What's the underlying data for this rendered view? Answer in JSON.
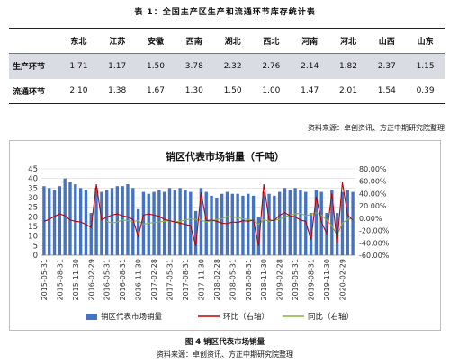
{
  "table": {
    "title": "表 1：全国主产区生产和流通环节库存统计表",
    "columns": [
      "",
      "东北",
      "江苏",
      "安徽",
      "西南",
      "湖北",
      "西北",
      "河南",
      "河北",
      "山西",
      "山东"
    ],
    "rows": [
      {
        "label": "生产环节",
        "values": [
          "1.71",
          "1.17",
          "1.50",
          "3.78",
          "2.32",
          "2.76",
          "2.14",
          "1.82",
          "2.37",
          "1.15"
        ]
      },
      {
        "label": "流通环节",
        "values": [
          "2.10",
          "1.38",
          "1.67",
          "1.30",
          "1.50",
          "1.00",
          "1.47",
          "2.01",
          "1.54",
          "0.39"
        ]
      }
    ]
  },
  "source_top": "资料来源：卓创资讯、方正中期研究院整理",
  "figure_caption": "图 4  销区代表市场销量",
  "source_bottom": "资料来源：卓创资讯、方正中期研究院整理",
  "colors": {
    "bar": "#4472c4",
    "mom": "#c00000",
    "yoy": "#8db33a"
  },
  "chart_data": {
    "type": "bar",
    "title": "销区代表市场销量（千吨）",
    "legend_position": "bottom",
    "grid": true,
    "y_left": {
      "min": 0,
      "max": 45,
      "ticks": [
        0,
        5,
        10,
        15,
        20,
        25,
        30,
        35,
        40,
        45
      ]
    },
    "y_right": {
      "min": -60,
      "max": 80,
      "ticks": [
        "-60.00%",
        "-40.00%",
        "-20.00%",
        "0.00%",
        "20.00%",
        "40.00%",
        "60.00%",
        "80.00%"
      ]
    },
    "x_tick_labels": [
      "2015-05-31",
      "2015-08-31",
      "2015-11-30",
      "2016-02-29",
      "2016-05-31",
      "2016-08-31",
      "2016-11-30",
      "2017-02-28",
      "2017-05-31",
      "2017-08-31",
      "2017-11-30",
      "2018-02-28",
      "2018-05-31",
      "2018-08-31",
      "2018-11-30",
      "2019-02-28",
      "2019-05-31",
      "2019-08-31",
      "2019-11-30",
      "2020-02-29"
    ],
    "series": [
      {
        "name": "销区代表市场销量",
        "kind": "bar",
        "axis": "left",
        "values": [
          36,
          35,
          34,
          36,
          40,
          38,
          37,
          35,
          34,
          22,
          35,
          33,
          34,
          35,
          36,
          36,
          37,
          35,
          24,
          33,
          32,
          33,
          34,
          33,
          35,
          34,
          35,
          34,
          33,
          23,
          35,
          33,
          31,
          30,
          32,
          33,
          32,
          32,
          31,
          32,
          31,
          20,
          33,
          32,
          31,
          33,
          35,
          34,
          35,
          34,
          33,
          22,
          34,
          33,
          22,
          34,
          22,
          33,
          34,
          33
        ]
      },
      {
        "name": "环比（右轴）",
        "kind": "line",
        "axis": "right",
        "values": [
          -5,
          -2,
          3,
          7,
          4,
          -3,
          -5,
          -6,
          -10,
          -15,
          55,
          -3,
          2,
          5,
          7,
          4,
          2,
          -2,
          -30,
          5,
          7,
          5,
          3,
          -2,
          -4,
          -6,
          -8,
          -10,
          -12,
          -45,
          42,
          -4,
          -3,
          -5,
          -8,
          -9,
          -6,
          -7,
          -4,
          -5,
          -3,
          -45,
          55,
          -3,
          -4,
          5,
          9,
          4,
          2,
          -3,
          -5,
          -35,
          35,
          -6,
          -25,
          40,
          -40,
          58,
          5,
          -3
        ]
      },
      {
        "name": "同比（右轴）",
        "kind": "line",
        "axis": "right",
        "values": [
          null,
          null,
          null,
          null,
          null,
          null,
          null,
          null,
          null,
          null,
          null,
          null,
          -5,
          -8,
          -6,
          -3,
          -4,
          -5,
          -4,
          -10,
          -8,
          -7,
          -6,
          -5,
          -4,
          -6,
          -5,
          -3,
          -1,
          -2,
          -3,
          -6,
          -4,
          -2,
          -1,
          3,
          2,
          1,
          -1,
          -2,
          -4,
          -10,
          -2,
          -5,
          -3,
          -2,
          2,
          5,
          7,
          8,
          4,
          6,
          9,
          5,
          -3,
          -12,
          -28,
          -8,
          -2,
          0
        ]
      }
    ]
  }
}
